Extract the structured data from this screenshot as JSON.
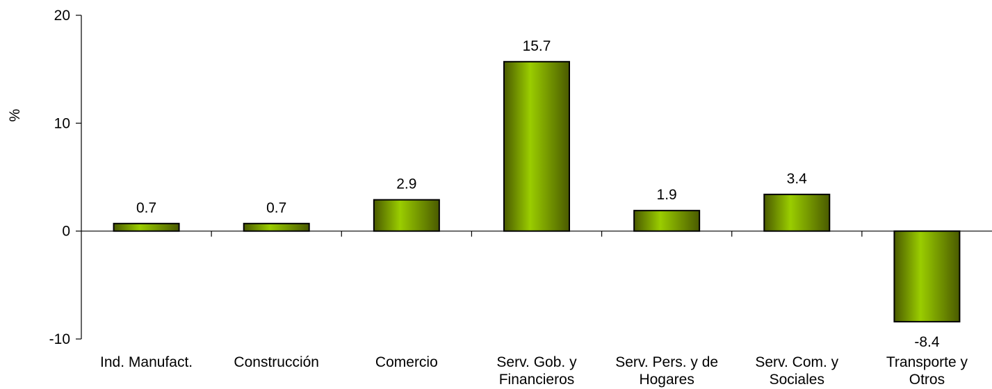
{
  "chart_data": {
    "type": "bar",
    "categories": [
      [
        "Ind. Manufact."
      ],
      [
        "Construcción"
      ],
      [
        "Comercio"
      ],
      [
        "Serv. Gob. y",
        "Financieros"
      ],
      [
        "Serv. Pers. y de",
        "Hogares"
      ],
      [
        "Serv. Com. y",
        "Sociales"
      ],
      [
        "Transporte y",
        "Otros"
      ]
    ],
    "values": [
      0.7,
      0.7,
      2.9,
      15.7,
      1.9,
      3.4,
      -8.4
    ],
    "data_labels": [
      "0.7",
      "0.7",
      "2.9",
      "15.7",
      "1.9",
      "3.4",
      "-8.4"
    ],
    "ylabel": "%",
    "ylim": [
      -10,
      20
    ],
    "yticks": [
      -10,
      0,
      10,
      20
    ],
    "ytick_labels": [
      "-10",
      "0",
      "10",
      "20"
    ],
    "grid": false,
    "legend": "none",
    "colors": {
      "bar_edge": "#5c6b0c",
      "bar_light": "#9acd00",
      "bar_dark": "#4a5a00",
      "outline": "#000000"
    }
  }
}
